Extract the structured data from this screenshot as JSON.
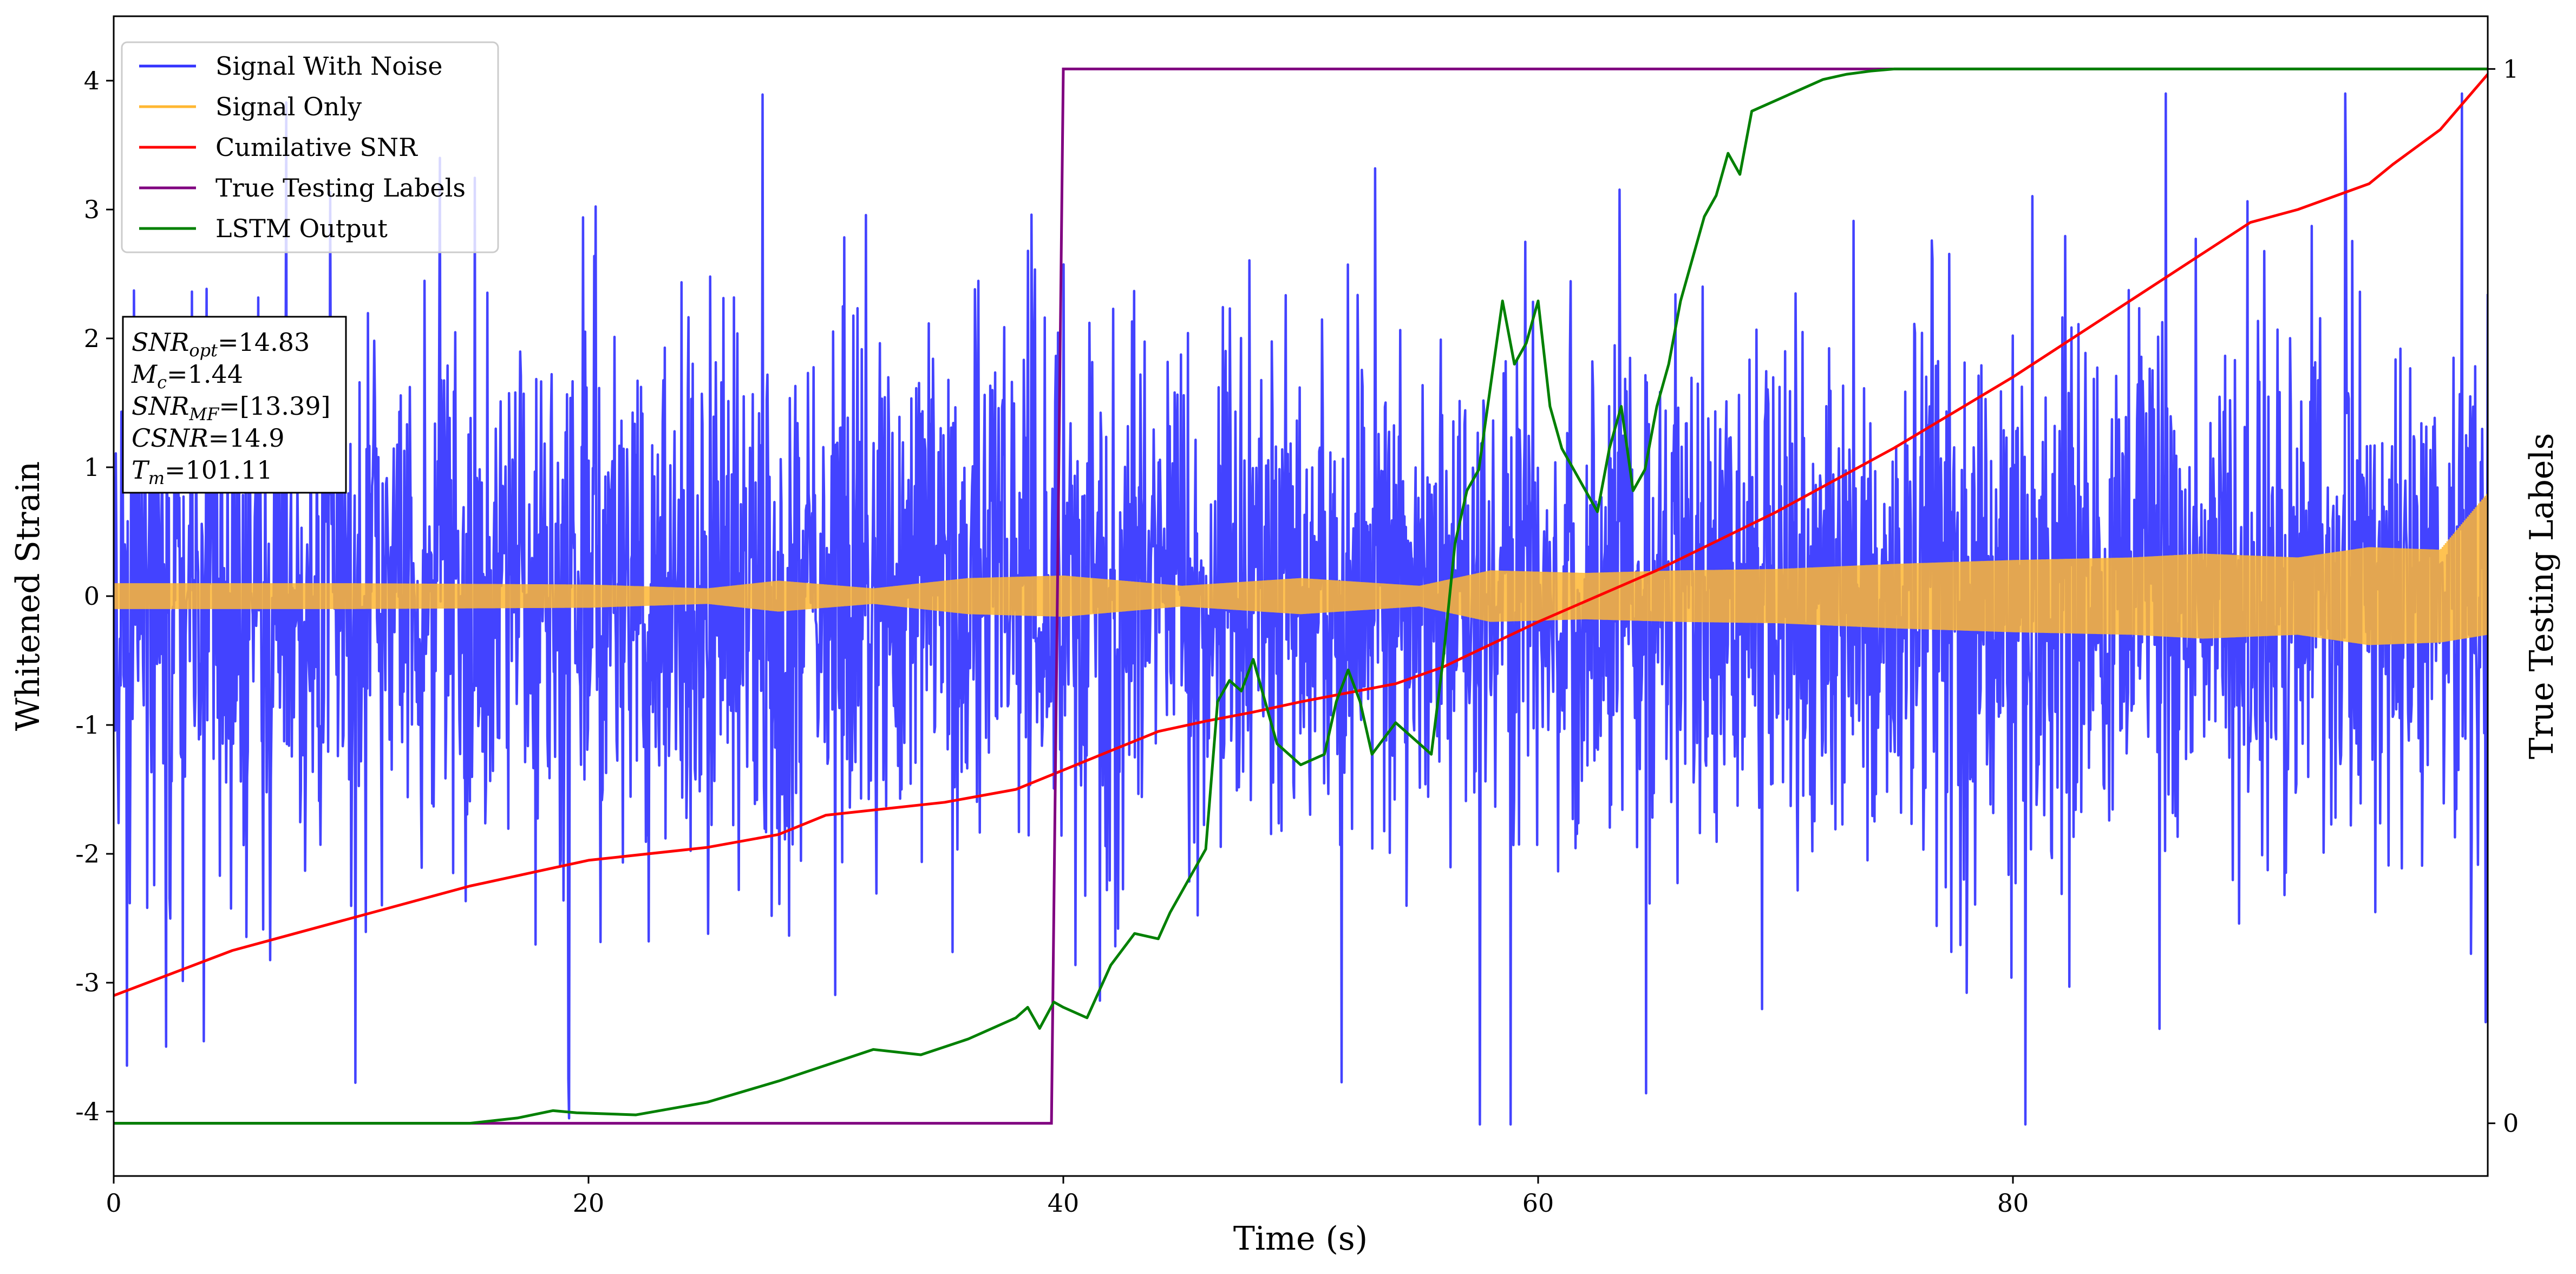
{
  "chart_data": {
    "type": "line",
    "xlabel": "Time (s)",
    "ylabel": "Whitened Strain",
    "y2label": "True Testing Labels",
    "xlim": [
      0,
      100
    ],
    "ylim": [
      -4.5,
      4.5
    ],
    "y2lim": [
      -0.05,
      1.05
    ],
    "x_ticks": [
      "0",
      "20",
      "40",
      "60",
      "80"
    ],
    "y_ticks": [
      "-4",
      "-3",
      "-2",
      "-1",
      "0",
      "1",
      "2",
      "3",
      "4"
    ],
    "y2_ticks": [
      "0",
      "1"
    ],
    "grid": false,
    "legend_position": "top-left",
    "legend": [
      {
        "label": "Signal With Noise",
        "color": "#3333ff"
      },
      {
        "label": "Signal Only",
        "color": "#ffb732"
      },
      {
        "label": "Cumilative SNR",
        "color": "#ff0000"
      },
      {
        "label": "True Testing Labels",
        "color": "#800080"
      },
      {
        "label": "LSTM Output",
        "color": "#008000"
      }
    ],
    "annotation_box": {
      "position": "left",
      "lines": [
        {
          "base": "SNR",
          "sub": "opt",
          "value": "=14.83"
        },
        {
          "base": "M",
          "sub": "c",
          "value": "=1.44"
        },
        {
          "base": "SNR",
          "sub": "MF",
          "value": "=[13.39]"
        },
        {
          "base": "CSNR",
          "sub": "",
          "value": "=14.9"
        },
        {
          "base": "T",
          "sub": "m",
          "value": "=101.11"
        }
      ]
    },
    "series": [
      {
        "name": "Signal With Noise",
        "color": "#3333ff",
        "style": "dense-noise",
        "x_range": [
          0,
          100
        ],
        "typical_amplitude": 1.0,
        "peak_min": -4.1,
        "peak_max": 3.9
      },
      {
        "name": "Signal Only",
        "color": "#ffb732",
        "style": "envelope",
        "x": [
          0,
          10,
          20,
          25,
          28,
          32,
          36,
          40,
          45,
          50,
          55,
          58,
          62,
          66,
          70,
          75,
          80,
          85,
          88,
          92,
          95,
          98,
          100
        ],
        "upper": [
          0.1,
          0.1,
          0.09,
          0.06,
          0.12,
          0.06,
          0.14,
          0.16,
          0.08,
          0.14,
          0.08,
          0.2,
          0.18,
          0.2,
          0.21,
          0.25,
          0.28,
          0.3,
          0.33,
          0.3,
          0.38,
          0.36,
          0.8
        ],
        "lower": [
          -0.1,
          -0.1,
          -0.09,
          -0.06,
          -0.12,
          -0.06,
          -0.14,
          -0.16,
          -0.08,
          -0.14,
          -0.08,
          -0.2,
          -0.18,
          -0.2,
          -0.21,
          -0.25,
          -0.28,
          -0.3,
          -0.33,
          -0.3,
          -0.38,
          -0.36,
          -0.3
        ]
      },
      {
        "name": "Cumilative SNR",
        "color": "#ff0000",
        "axis": "left",
        "x": [
          0,
          5,
          10,
          15,
          20,
          25,
          28,
          30,
          35,
          38,
          40,
          42,
          44,
          46,
          48,
          50,
          52,
          54,
          56,
          60,
          65,
          70,
          75,
          80,
          85,
          90,
          92,
          95,
          96,
          98,
          100
        ],
        "y": [
          -3.1,
          -2.75,
          -2.5,
          -2.25,
          -2.05,
          -1.95,
          -1.85,
          -1.7,
          -1.6,
          -1.5,
          -1.35,
          -1.2,
          -1.05,
          -0.97,
          -0.9,
          -0.82,
          -0.75,
          -0.68,
          -0.55,
          -0.2,
          0.2,
          0.65,
          1.15,
          1.7,
          2.3,
          2.9,
          3.0,
          3.2,
          3.35,
          3.62,
          4.05
        ]
      },
      {
        "name": "True Testing Labels",
        "color": "#800080",
        "axis": "right",
        "x": [
          0,
          39.5,
          40,
          100
        ],
        "y": [
          0,
          0,
          1,
          1
        ]
      },
      {
        "name": "LSTM Output",
        "color": "#008000",
        "axis": "right",
        "x": [
          0,
          10,
          15,
          17,
          18.5,
          19.5,
          22,
          25,
          28,
          30,
          32,
          34,
          36,
          38,
          38.5,
          39,
          39.6,
          40,
          41,
          42,
          43,
          44,
          44.5,
          45,
          46,
          46.5,
          47,
          47.5,
          48,
          49,
          50,
          51,
          51.5,
          52,
          52.5,
          53,
          54,
          55,
          55.5,
          56,
          56.5,
          57,
          57.5,
          58,
          58.5,
          59,
          59.5,
          60,
          60.5,
          61,
          61.5,
          62,
          62.5,
          63,
          63.5,
          64,
          64.5,
          65,
          65.5,
          66,
          66.5,
          67,
          67.5,
          68,
          68.5,
          69,
          70,
          71,
          72,
          73,
          74,
          75,
          76,
          80,
          90,
          100
        ],
        "y": [
          0,
          0,
          0,
          0.005,
          0.012,
          0.01,
          0.008,
          0.02,
          0.04,
          0.055,
          0.07,
          0.065,
          0.08,
          0.1,
          0.11,
          0.09,
          0.115,
          0.11,
          0.1,
          0.15,
          0.18,
          0.175,
          0.2,
          0.22,
          0.26,
          0.4,
          0.42,
          0.41,
          0.44,
          0.36,
          0.34,
          0.35,
          0.4,
          0.43,
          0.4,
          0.35,
          0.38,
          0.36,
          0.35,
          0.44,
          0.55,
          0.6,
          0.62,
          0.7,
          0.78,
          0.72,
          0.74,
          0.78,
          0.68,
          0.64,
          0.62,
          0.6,
          0.58,
          0.64,
          0.68,
          0.6,
          0.62,
          0.68,
          0.72,
          0.78,
          0.82,
          0.86,
          0.88,
          0.92,
          0.9,
          0.96,
          0.97,
          0.98,
          0.99,
          0.995,
          0.998,
          1,
          1,
          1,
          1,
          1
        ]
      }
    ]
  }
}
